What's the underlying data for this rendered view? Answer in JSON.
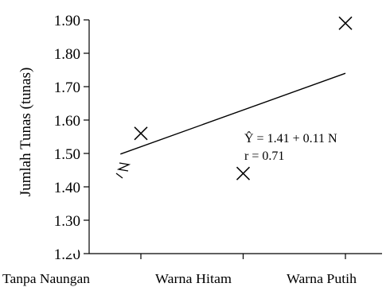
{
  "chart_data": {
    "type": "scatter",
    "ylabel": "Jumlah Tunas (tunas)",
    "xlabel": "",
    "categories": [
      "Tanpa Naungan",
      "Warna Hitam",
      "Warna Putih"
    ],
    "y_ticks": [
      "1.90",
      "1.80",
      "1.70",
      "1.60",
      "1.50",
      "1.40",
      "1.30",
      "1.20"
    ],
    "ylim": [
      1.2,
      1.9
    ],
    "grid": false,
    "points": [
      {
        "x": 1,
        "y": 1.56
      },
      {
        "x": 2,
        "y": 1.44
      },
      {
        "x": 3,
        "y": 1.89
      }
    ],
    "trendline": {
      "intercept": 1.41,
      "slope": 0.11,
      "x_start": 0.8,
      "x_end": 3
    },
    "annotation": {
      "equation": "Ŷ = 1.41 + 0.11 N",
      "r": "r = 0.71"
    },
    "marker": "x",
    "colors": {
      "line": "#000000",
      "marker": "#000000"
    }
  }
}
